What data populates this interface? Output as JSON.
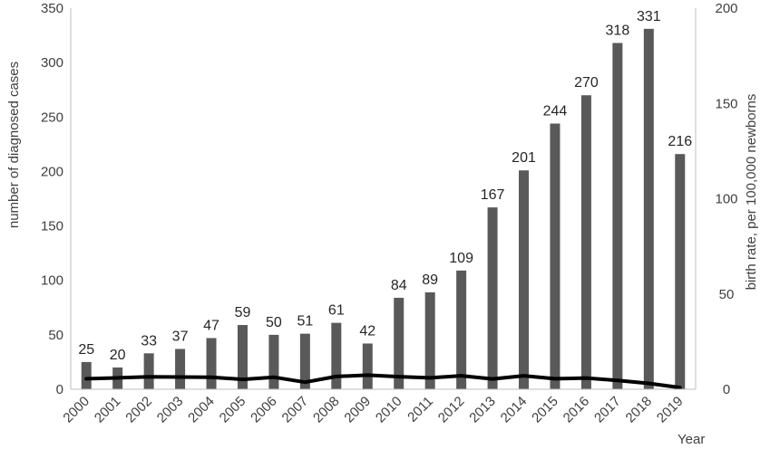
{
  "chart_data": {
    "type": "bar",
    "categories": [
      "2000",
      "2001",
      "2002",
      "2003",
      "2004",
      "2005",
      "2006",
      "2007",
      "2008",
      "2009",
      "2010",
      "2011",
      "2012",
      "2013",
      "2014",
      "2015",
      "2016",
      "2017",
      "2018",
      "2019"
    ],
    "series": [
      {
        "type": "bar",
        "axis": "left",
        "values": [
          25,
          20,
          33,
          37,
          47,
          59,
          50,
          51,
          61,
          42,
          84,
          89,
          109,
          167,
          201,
          244,
          270,
          318,
          331,
          216
        ],
        "color": "#595959"
      },
      {
        "type": "line",
        "axis": "right",
        "values": [
          5.5,
          6.0,
          6.5,
          6.4,
          6.3,
          5.2,
          6.3,
          3.7,
          6.7,
          7.4,
          6.6,
          6.0,
          7.1,
          5.4,
          7.1,
          5.5,
          5.9,
          4.6,
          3.1,
          0.9
        ],
        "color": "#000000"
      }
    ],
    "xlabel": "Year",
    "ylabel_left": "number of diagnosed cases",
    "ylabel_right": "birth rate,  per 100,000 newborns",
    "ylim_left": [
      0,
      350
    ],
    "ylim_right": [
      0,
      200
    ],
    "yticks_left": [
      "0",
      "50",
      "100",
      "150",
      "200",
      "250",
      "300",
      "350"
    ],
    "yticks_right": [
      "0",
      "50",
      "100",
      "150",
      "200"
    ],
    "grid": false,
    "legend": "none"
  }
}
